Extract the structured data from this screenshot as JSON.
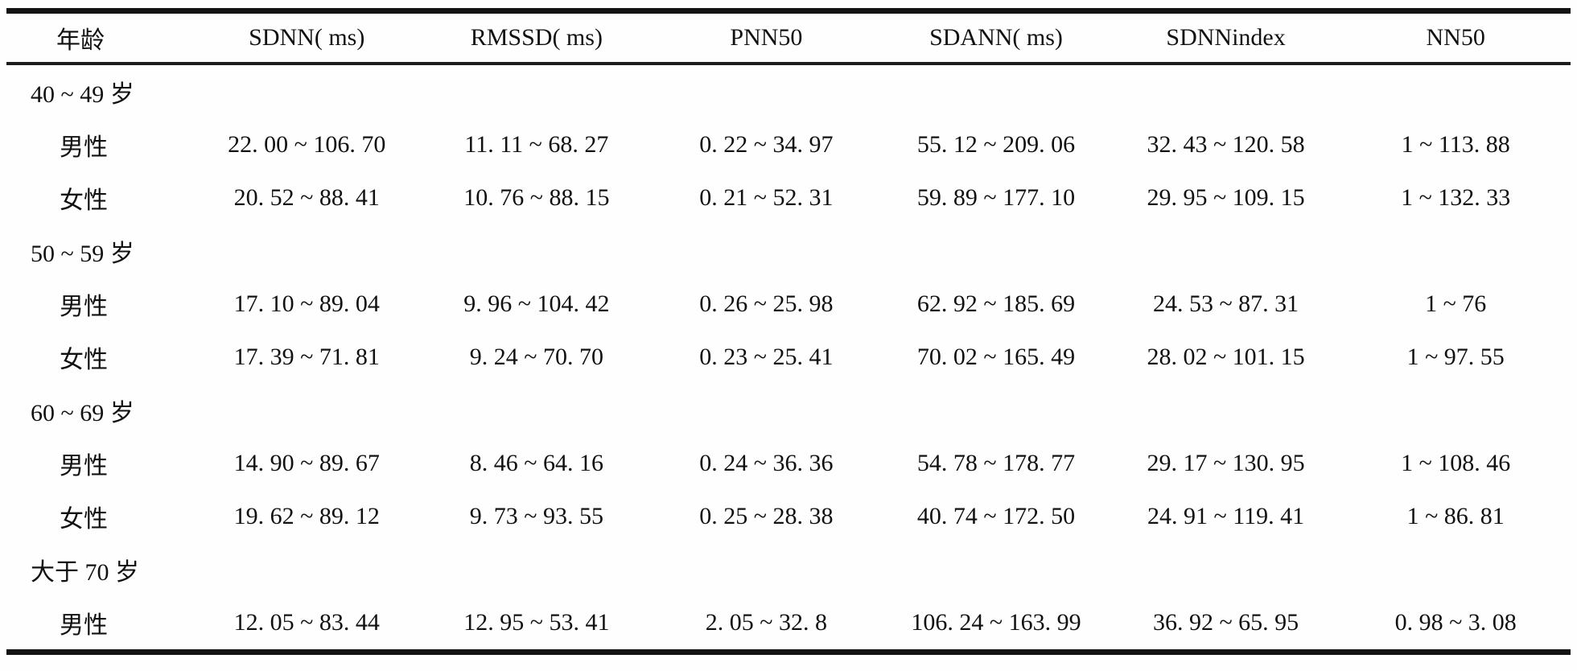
{
  "table": {
    "columns": [
      "年龄",
      "SDNN( ms)",
      "RMSSD( ms)",
      "PNN50",
      "SDANN( ms)",
      "SDNNindex",
      "NN50"
    ],
    "rows": [
      {
        "type": "group",
        "label": "40 ~ 49 岁",
        "cells": [
          "",
          "",
          "",
          "",
          "",
          ""
        ]
      },
      {
        "type": "data",
        "label": "男性",
        "cells": [
          "22. 00 ~ 106. 70",
          "11. 11 ~ 68. 27",
          "0. 22 ~ 34. 97",
          "55. 12 ~ 209. 06",
          "32. 43 ~ 120. 58",
          "1 ~ 113. 88"
        ]
      },
      {
        "type": "data",
        "label": "女性",
        "cells": [
          "20. 52 ~ 88. 41",
          "10. 76 ~ 88. 15",
          "0. 21 ~ 52. 31",
          "59. 89 ~ 177. 10",
          "29. 95 ~ 109. 15",
          "1 ~ 132. 33"
        ]
      },
      {
        "type": "group",
        "label": "50 ~ 59 岁",
        "cells": [
          "",
          "",
          "",
          "",
          "",
          ""
        ]
      },
      {
        "type": "data",
        "label": "男性",
        "cells": [
          "17. 10 ~ 89. 04",
          "9. 96 ~ 104. 42",
          "0. 26 ~ 25. 98",
          "62. 92 ~ 185. 69",
          "24. 53 ~ 87. 31",
          "1 ~ 76"
        ]
      },
      {
        "type": "data",
        "label": "女性",
        "cells": [
          "17. 39 ~ 71. 81",
          "9. 24 ~ 70. 70",
          "0. 23 ~ 25. 41",
          "70. 02 ~ 165. 49",
          "28. 02 ~ 101. 15",
          "1 ~ 97. 55"
        ]
      },
      {
        "type": "group",
        "label": "60 ~ 69 岁",
        "cells": [
          "",
          "",
          "",
          "",
          "",
          ""
        ]
      },
      {
        "type": "data",
        "label": "男性",
        "cells": [
          "14. 90 ~ 89. 67",
          "8. 46 ~ 64. 16",
          "0. 24 ~ 36. 36",
          "54. 78 ~ 178. 77",
          "29. 17 ~ 130. 95",
          "1 ~ 108. 46"
        ]
      },
      {
        "type": "data",
        "label": "女性",
        "cells": [
          "19. 62 ~ 89. 12",
          "9. 73 ~ 93. 55",
          "0. 25 ~ 28. 38",
          "40. 74 ~ 172. 50",
          "24. 91 ~ 119. 41",
          "1 ~ 86. 81"
        ]
      },
      {
        "type": "group",
        "label": "大于 70 岁",
        "cells": [
          "",
          "",
          "",
          "",
          "",
          ""
        ]
      },
      {
        "type": "data",
        "label": "男性",
        "cells": [
          "12. 05 ~ 83. 44",
          "12. 95 ~ 53. 41",
          "2. 05 ~ 32. 8",
          "106. 24 ~ 163. 99",
          "36. 92 ~ 65. 95",
          "0. 98 ~ 3. 08"
        ]
      }
    ]
  },
  "chart_data": {
    "type": "table",
    "title": "",
    "columns": [
      "年龄",
      "SDNN( ms)",
      "RMSSD( ms)",
      "PNN50",
      "SDANN( ms)",
      "SDNNindex",
      "NN50"
    ],
    "groups": [
      {
        "age": "40 ~ 49 岁",
        "entries": [
          {
            "sex": "男性",
            "SDNN": "22.00~106.70",
            "RMSSD": "11.11~68.27",
            "PNN50": "0.22~34.97",
            "SDANN": "55.12~209.06",
            "SDNNindex": "32.43~120.58",
            "NN50": "1~113.88"
          },
          {
            "sex": "女性",
            "SDNN": "20.52~88.41",
            "RMSSD": "10.76~88.15",
            "PNN50": "0.21~52.31",
            "SDANN": "59.89~177.10",
            "SDNNindex": "29.95~109.15",
            "NN50": "1~132.33"
          }
        ]
      },
      {
        "age": "50 ~ 59 岁",
        "entries": [
          {
            "sex": "男性",
            "SDNN": "17.10~89.04",
            "RMSSD": "9.96~104.42",
            "PNN50": "0.26~25.98",
            "SDANN": "62.92~185.69",
            "SDNNindex": "24.53~87.31",
            "NN50": "1~76"
          },
          {
            "sex": "女性",
            "SDNN": "17.39~71.81",
            "RMSSD": "9.24~70.70",
            "PNN50": "0.23~25.41",
            "SDANN": "70.02~165.49",
            "SDNNindex": "28.02~101.15",
            "NN50": "1~97.55"
          }
        ]
      },
      {
        "age": "60 ~ 69 岁",
        "entries": [
          {
            "sex": "男性",
            "SDNN": "14.90~89.67",
            "RMSSD": "8.46~64.16",
            "PNN50": "0.24~36.36",
            "SDANN": "54.78~178.77",
            "SDNNindex": "29.17~130.95",
            "NN50": "1~108.46"
          },
          {
            "sex": "女性",
            "SDNN": "19.62~89.12",
            "RMSSD": "9.73~93.55",
            "PNN50": "0.25~28.38",
            "SDANN": "40.74~172.50",
            "SDNNindex": "24.91~119.41",
            "NN50": "1~86.81"
          }
        ]
      },
      {
        "age": "大于 70 岁",
        "entries": [
          {
            "sex": "男性",
            "SDNN": "12.05~83.44",
            "RMSSD": "12.95~53.41",
            "PNN50": "2.05~32.8",
            "SDANN": "106.24~163.99",
            "SDNNindex": "36.92~65.95",
            "NN50": "0.98~3.08"
          }
        ]
      }
    ]
  },
  "colors": {
    "text": "#111111",
    "rule": "#141414",
    "background": "#fefefe"
  }
}
